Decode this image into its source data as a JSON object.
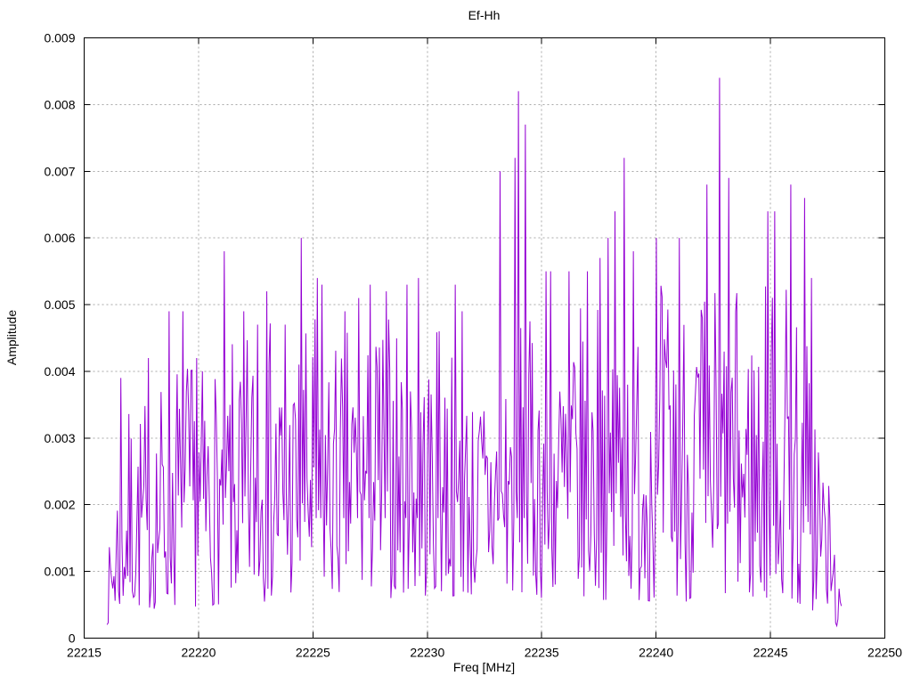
{
  "chart_data": {
    "type": "line",
    "title": "Ef-Hh",
    "xlabel": "Freq [MHz]",
    "ylabel": "Amplitude",
    "xlim": [
      22215,
      22250
    ],
    "ylim": [
      0,
      0.009
    ],
    "grid": "dotted-gray-at-major-ticks",
    "legend": "none",
    "line_color": "#9400d3",
    "grid_color": "#a8a8a8",
    "axis_color": "#000000",
    "background": "#ffffff",
    "xticks": {
      "values": [
        22215,
        22220,
        22225,
        22230,
        22235,
        22240,
        22245,
        22250
      ],
      "labels": [
        "22215",
        "22220",
        "22225",
        "22230",
        "22235",
        "22240",
        "22245",
        "22250"
      ]
    },
    "yticks": {
      "values": [
        0,
        0.001,
        0.002,
        0.003,
        0.004,
        0.005,
        0.006,
        0.007,
        0.008,
        0.009
      ],
      "labels": [
        "0",
        "0.001",
        "0.002",
        "0.003",
        "0.004",
        "0.005",
        "0.006",
        "0.007",
        "0.008",
        "0.009"
      ]
    },
    "signal": {
      "x_start": 22216.0,
      "x_end": 22248.1,
      "n_points": 640,
      "seed": 7,
      "shape": 1.4,
      "envelope": [
        [
          22216.0,
          0.001
        ],
        [
          22216.5,
          0.003
        ],
        [
          22217.0,
          0.0035
        ],
        [
          22218.0,
          0.0037
        ],
        [
          22219.0,
          0.0044
        ],
        [
          22220.0,
          0.0041
        ],
        [
          22221.0,
          0.0042
        ],
        [
          22222.0,
          0.0047
        ],
        [
          22223.0,
          0.0049
        ],
        [
          22224.0,
          0.0043
        ],
        [
          22225.0,
          0.0049
        ],
        [
          22226.0,
          0.0045
        ],
        [
          22227.0,
          0.0049
        ],
        [
          22228.0,
          0.0049
        ],
        [
          22229.0,
          0.0051
        ],
        [
          22230.0,
          0.0044
        ],
        [
          22231.0,
          0.005
        ],
        [
          22232.0,
          0.0037
        ],
        [
          22233.0,
          0.0044
        ],
        [
          22234.0,
          0.0048
        ],
        [
          22235.0,
          0.0047
        ],
        [
          22236.0,
          0.0047
        ],
        [
          22237.0,
          0.0051
        ],
        [
          22238.0,
          0.0056
        ],
        [
          22239.0,
          0.0052
        ],
        [
          22240.0,
          0.0054
        ],
        [
          22241.0,
          0.0053
        ],
        [
          22242.0,
          0.0054
        ],
        [
          22243.0,
          0.0055
        ],
        [
          22244.0,
          0.005
        ],
        [
          22245.0,
          0.0056
        ],
        [
          22246.0,
          0.0056
        ],
        [
          22247.0,
          0.004
        ],
        [
          22247.5,
          0.0026
        ],
        [
          22248.1,
          0.0005
        ]
      ],
      "floor": [
        [
          22216.0,
          0.0002
        ],
        [
          22217.0,
          0.0004
        ],
        [
          22225.0,
          0.0006
        ],
        [
          22235.0,
          0.0006
        ],
        [
          22245.0,
          0.0005
        ],
        [
          22247.5,
          0.0003
        ],
        [
          22248.1,
          0.0001
        ]
      ],
      "peaks": [
        [
          22216.6,
          0.0039
        ],
        [
          22217.8,
          0.0042
        ],
        [
          22218.7,
          0.0049
        ],
        [
          22219.3,
          0.0049
        ],
        [
          22219.9,
          0.0042
        ],
        [
          22221.1,
          0.0058
        ],
        [
          22222.0,
          0.0049
        ],
        [
          22222.6,
          0.0047
        ],
        [
          22223.0,
          0.0052
        ],
        [
          22223.8,
          0.0047
        ],
        [
          22224.5,
          0.006
        ],
        [
          22225.2,
          0.0054
        ],
        [
          22225.4,
          0.0053
        ],
        [
          22226.4,
          0.0049
        ],
        [
          22227.0,
          0.0051
        ],
        [
          22227.5,
          0.0053
        ],
        [
          22228.2,
          0.0052
        ],
        [
          22229.1,
          0.0053
        ],
        [
          22229.6,
          0.0054
        ],
        [
          22230.5,
          0.0046
        ],
        [
          22231.2,
          0.0053
        ],
        [
          22231.5,
          0.0049
        ],
        [
          22233.2,
          0.007
        ],
        [
          22233.85,
          0.0072
        ],
        [
          22234.0,
          0.0082
        ],
        [
          22234.3,
          0.0077
        ],
        [
          22235.2,
          0.0055
        ],
        [
          22235.4,
          0.0055
        ],
        [
          22236.2,
          0.0055
        ],
        [
          22237.0,
          0.0055
        ],
        [
          22237.55,
          0.0057
        ],
        [
          22237.9,
          0.006
        ],
        [
          22238.2,
          0.0064
        ],
        [
          22238.6,
          0.0072
        ],
        [
          22239.0,
          0.0058
        ],
        [
          22240.0,
          0.006
        ],
        [
          22241.0,
          0.006
        ],
        [
          22242.2,
          0.0068
        ],
        [
          22242.8,
          0.0084
        ],
        [
          22243.2,
          0.0069
        ],
        [
          22244.9,
          0.0064
        ],
        [
          22245.2,
          0.0064
        ],
        [
          22245.9,
          0.0068
        ],
        [
          22246.5,
          0.0066
        ],
        [
          22246.8,
          0.0054
        ]
      ]
    }
  }
}
